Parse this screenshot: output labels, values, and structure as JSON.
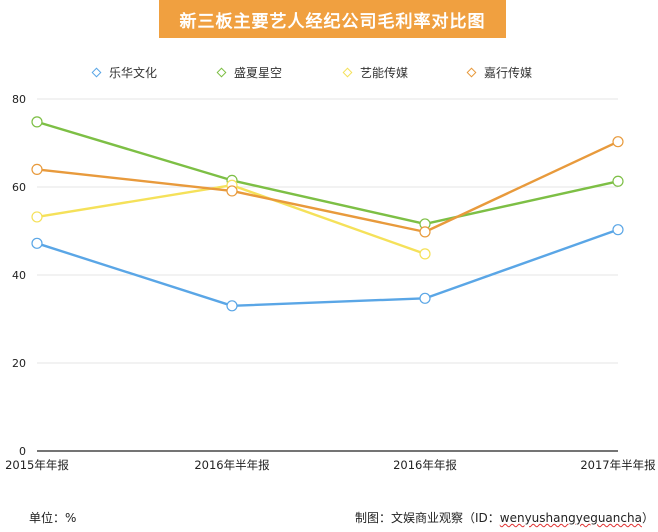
{
  "title": "新三板主要艺人经纪公司毛利率对比图",
  "footer": {
    "unit": "单位：%",
    "source_prefix": "制图：文娱商业观察（ID：",
    "source_id": "wenyushangyeguancha",
    "source_suffix": "）"
  },
  "colors": {
    "title_bg": "#f0a040",
    "乐华文化": "#5aa6e6",
    "盛夏星空": "#7dbf45",
    "艺能传媒": "#f5e15a",
    "嘉行传媒": "#e89a3c"
  },
  "chart_data": {
    "type": "line",
    "title": "新三板主要艺人经纪公司毛利率对比图",
    "categories": [
      "2015年年报",
      "2016年半年报",
      "2016年年报",
      "2017年半年报"
    ],
    "ylim": [
      0,
      80
    ],
    "yticks": [
      0,
      20,
      40,
      60,
      80
    ],
    "grid": true,
    "legend_position": "top",
    "series": [
      {
        "name": "乐华文化",
        "color": "#5aa6e6",
        "values": [
          47.2,
          33.0,
          34.7,
          50.3
        ]
      },
      {
        "name": "盛夏星空",
        "color": "#7dbf45",
        "values": [
          74.8,
          61.5,
          51.6,
          61.3
        ]
      },
      {
        "name": "艺能传媒",
        "color": "#f5e15a",
        "values": [
          53.2,
          60.4,
          44.8,
          null
        ]
      },
      {
        "name": "嘉行传媒",
        "color": "#e89a3c",
        "values": [
          64.0,
          59.1,
          49.8,
          70.3
        ]
      }
    ]
  }
}
